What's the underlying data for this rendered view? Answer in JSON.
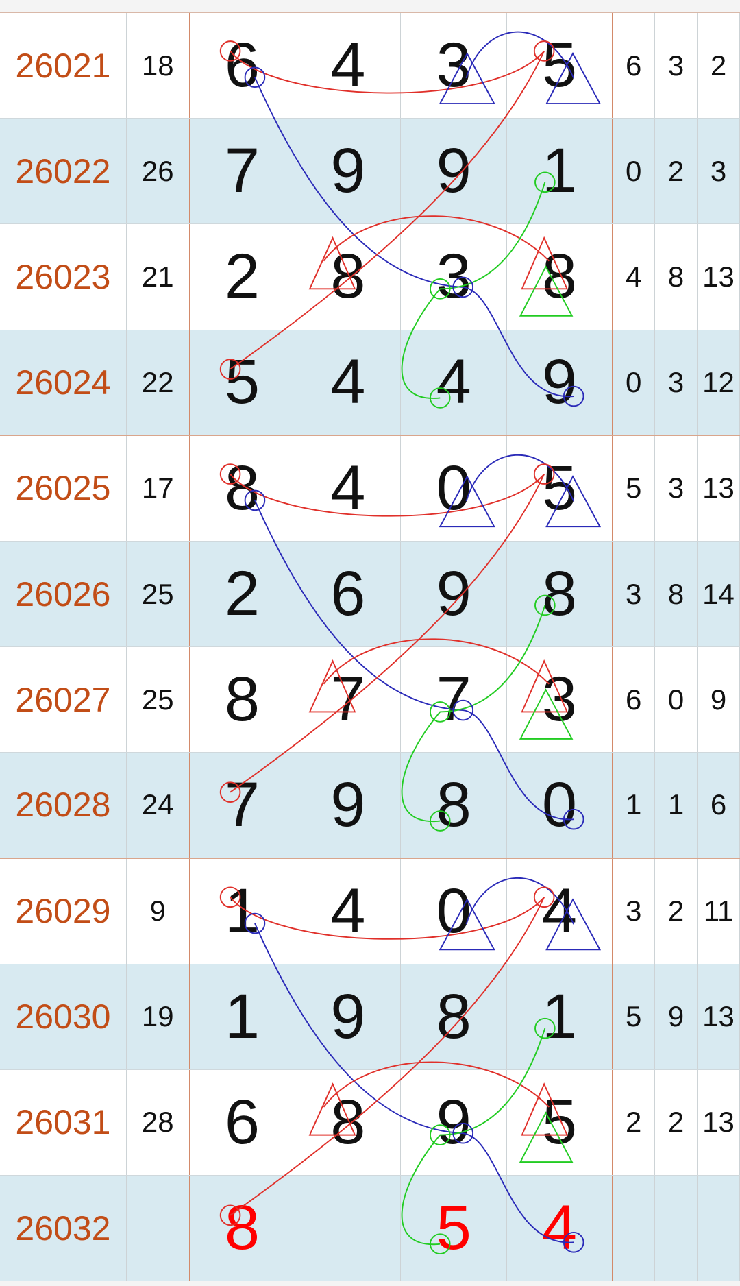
{
  "rows": [
    {
      "issue": "26021",
      "sum": "18",
      "digits": [
        "6",
        "4",
        "3",
        "5"
      ],
      "extra": [
        "6",
        "3",
        "2"
      ]
    },
    {
      "issue": "26022",
      "sum": "26",
      "digits": [
        "7",
        "9",
        "9",
        "1"
      ],
      "extra": [
        "0",
        "2",
        "3"
      ]
    },
    {
      "issue": "26023",
      "sum": "21",
      "digits": [
        "2",
        "8",
        "3",
        "8"
      ],
      "extra": [
        "4",
        "8",
        "13"
      ]
    },
    {
      "issue": "26024",
      "sum": "22",
      "digits": [
        "5",
        "4",
        "4",
        "9"
      ],
      "extra": [
        "0",
        "3",
        "12"
      ]
    },
    {
      "issue": "26025",
      "sum": "17",
      "digits": [
        "8",
        "4",
        "0",
        "5"
      ],
      "extra": [
        "5",
        "3",
        "13"
      ]
    },
    {
      "issue": "26026",
      "sum": "25",
      "digits": [
        "2",
        "6",
        "9",
        "8"
      ],
      "extra": [
        "3",
        "8",
        "14"
      ]
    },
    {
      "issue": "26027",
      "sum": "25",
      "digits": [
        "8",
        "7",
        "7",
        "3"
      ],
      "extra": [
        "6",
        "0",
        "9"
      ]
    },
    {
      "issue": "26028",
      "sum": "24",
      "digits": [
        "7",
        "9",
        "8",
        "0"
      ],
      "extra": [
        "1",
        "1",
        "6"
      ]
    },
    {
      "issue": "26029",
      "sum": "9",
      "digits": [
        "1",
        "4",
        "0",
        "4"
      ],
      "extra": [
        "3",
        "2",
        "11"
      ]
    },
    {
      "issue": "26030",
      "sum": "19",
      "digits": [
        "1",
        "9",
        "8",
        "1"
      ],
      "extra": [
        "5",
        "9",
        "13"
      ]
    },
    {
      "issue": "26031",
      "sum": "28",
      "digits": [
        "6",
        "8",
        "9",
        "5"
      ],
      "extra": [
        "2",
        "2",
        "13"
      ]
    },
    {
      "issue": "26032",
      "sum": "",
      "digits": [
        "8",
        "",
        "5",
        "4"
      ],
      "extra": [
        "",
        "",
        ""
      ],
      "predicted": true
    }
  ],
  "colors": {
    "issue": "#c24d17",
    "prediction": "#ff0000",
    "red_mark": "#e0302a",
    "blue_mark": "#2a2ab8",
    "green_mark": "#22cc22",
    "row_alt": "#d8eaf1"
  }
}
